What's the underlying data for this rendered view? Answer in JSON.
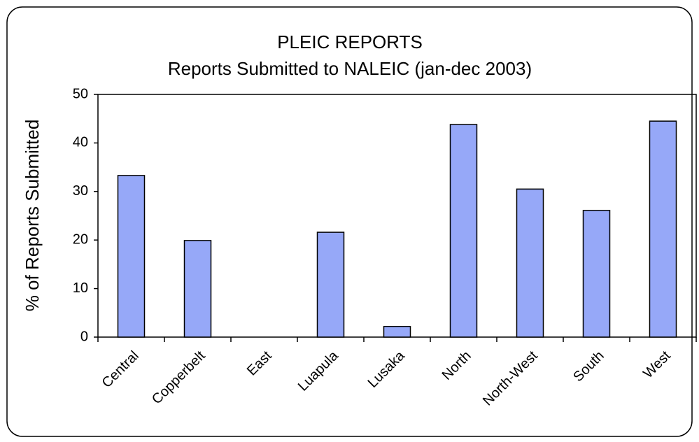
{
  "chart_data": {
    "type": "bar",
    "title": "PLEIC REPORTS",
    "subtitle": "Reports Submitted to NALEIC (jan-dec 2003)",
    "y_label": "% of Reports Submitted",
    "categories": [
      "Central",
      "Copperbelt",
      "East",
      "Luapula",
      "Lusaka",
      "North",
      "North-West",
      "South",
      "West"
    ],
    "values": [
      33.3,
      19.9,
      0,
      21.6,
      2.2,
      43.8,
      30.5,
      26.1,
      44.5
    ],
    "color": "#96a8f8",
    "ylim": [
      0,
      50
    ],
    "yticks": [
      0,
      10,
      20,
      30,
      40,
      50
    ],
    "grid": false
  }
}
